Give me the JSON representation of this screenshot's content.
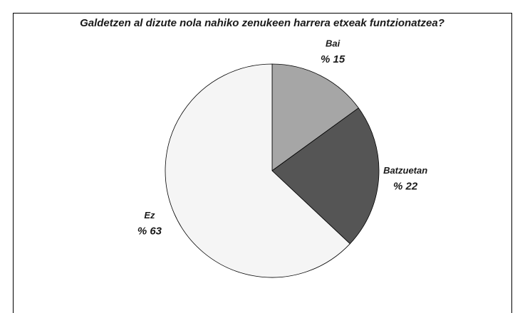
{
  "chart_data": {
    "type": "pie",
    "title": "Galdetzen al dizute nola nahiko zenukeen harrera etxeak funtzionatzea?",
    "categories": [
      "Bai",
      "Batzuetan",
      "Ez"
    ],
    "values": [
      15,
      22,
      63
    ],
    "value_labels": [
      "% 15",
      "% 22",
      "% 63"
    ],
    "colors": [
      "#a6a6a6",
      "#555555",
      "#f5f5f5"
    ]
  }
}
